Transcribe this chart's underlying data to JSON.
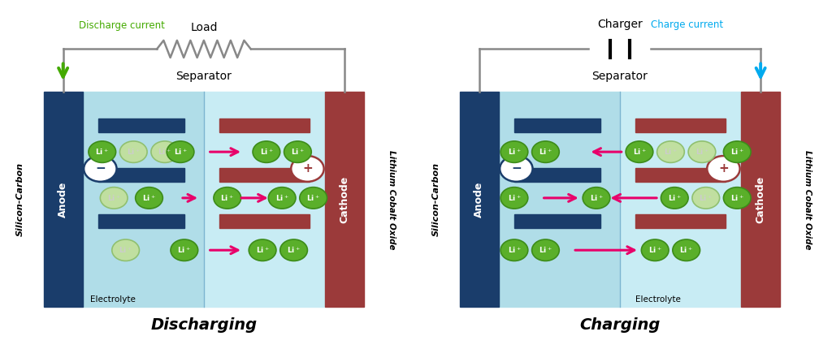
{
  "bg_color": "#ffffff",
  "anode_color": "#1a3d6b",
  "cathode_color": "#9b3a3a",
  "electrolyte_left_color": "#b0dde8",
  "electrolyte_right_color": "#c8ecf4",
  "separator_line_color": "#4a90b8",
  "anode_bar_color": "#1a3d6b",
  "cathode_bar_color": "#9b3a3a",
  "li_green": "#5aaf2a",
  "li_green_dark": "#3d8c1a",
  "li_faded": "#c0dfa0",
  "arrow_color": "#e8006a",
  "discharge_current_color": "#44aa00",
  "charge_current_color": "#00aaee",
  "wire_color": "#888888",
  "title_discharge": "Discharging",
  "title_charge": "Charging",
  "label_separator": "Separator",
  "label_anode": "Anode",
  "label_cathode": "Cathode",
  "label_electrolyte_discharge": "Electrolyte",
  "label_electrolyte_charge": "Electrolyte",
  "label_silicon_carbon": "Silicon-Carbon",
  "label_lithium_cobalt": "Lithium Cobalt Oxide",
  "label_discharge_current": "Discharge current",
  "label_load": "Load",
  "label_charge_current": "Charge current",
  "label_charger": "Charger"
}
